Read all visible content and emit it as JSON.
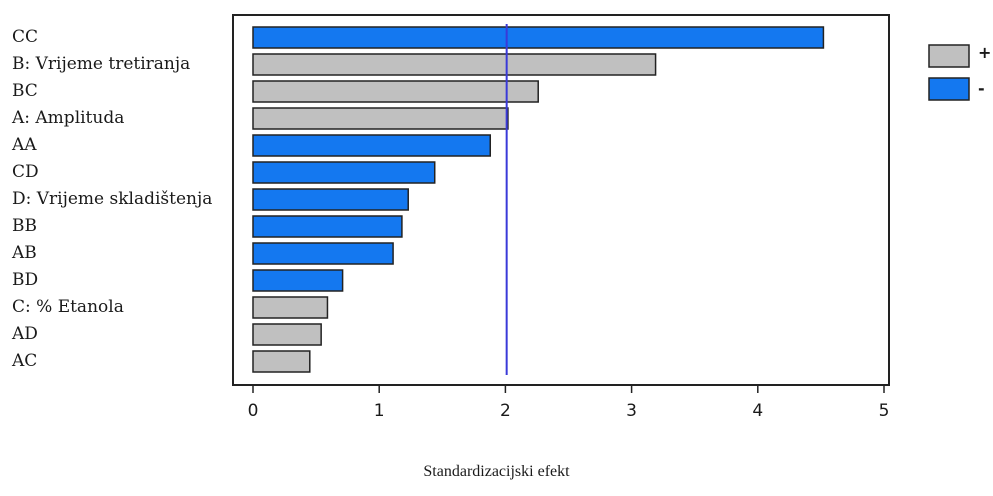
{
  "chart_data": {
    "type": "bar",
    "orientation": "horizontal",
    "categories": [
      "CC",
      "B: Vrijeme tretiranja",
      "BC",
      "A: Amplituda",
      "AA",
      "CD",
      "D: Vrijeme skladištenja",
      "BB",
      "AB",
      "BD",
      "C: % Etanola",
      "AD",
      "AC"
    ],
    "values": [
      4.52,
      3.19,
      2.26,
      2.02,
      1.88,
      1.44,
      1.23,
      1.18,
      1.11,
      0.71,
      0.59,
      0.54,
      0.45
    ],
    "signs": [
      "-",
      "+",
      "+",
      "+",
      "-",
      "-",
      "-",
      "-",
      "-",
      "-",
      "+",
      "+",
      "+"
    ],
    "xlabel": "Standardizacijski efekt",
    "ylabel": "",
    "xlim": [
      0,
      5
    ],
    "xticks": [
      0,
      1,
      2,
      3,
      4,
      5
    ],
    "reference_line": 2.01,
    "grid": false,
    "legend": {
      "position": "top-right",
      "entries": [
        {
          "label": "+",
          "color": "#c0c0c0"
        },
        {
          "label": "-",
          "color": "#1478f0"
        }
      ]
    },
    "colors": {
      "positive": "#c0c0c0",
      "negative": "#1478f0",
      "reference_line": "#3a3ad8",
      "border": "#222222"
    }
  }
}
